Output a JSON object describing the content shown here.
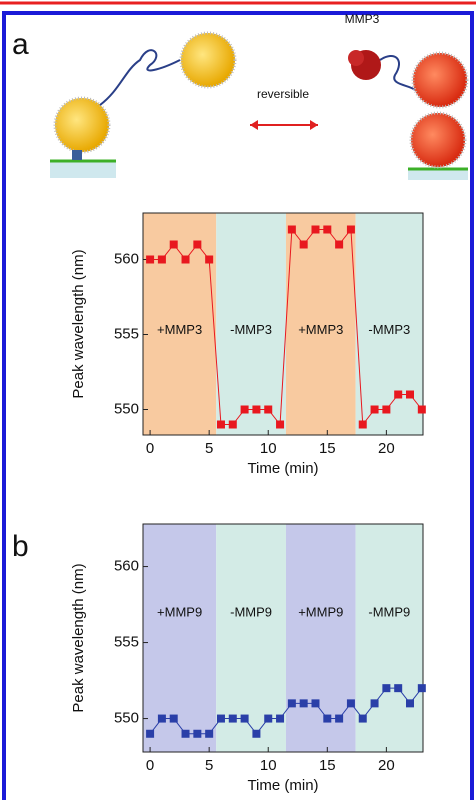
{
  "panel_labels": [
    "a",
    "b"
  ],
  "schematic": {
    "labels": [
      "MMP3",
      "reversible"
    ]
  },
  "chart_data": [
    {
      "type": "line",
      "xlabel": "Time (min)",
      "ylabel": "Peak wavelength (nm)",
      "xlim": [
        -0.6,
        23.1
      ],
      "ylim": [
        548.3,
        563.1
      ],
      "xticks": [
        0,
        5,
        10,
        15,
        20
      ],
      "yticks": [
        550,
        555,
        560
      ],
      "regions": [
        {
          "start": -0.6,
          "end": 5.6,
          "label": "+MMP3",
          "color": "#f8caa0"
        },
        {
          "start": 5.6,
          "end": 11.5,
          "label": "-MMP3",
          "color": "#d3ebe6"
        },
        {
          "start": 11.5,
          "end": 17.4,
          "label": "+MMP3",
          "color": "#f8caa0"
        },
        {
          "start": 17.4,
          "end": 23.1,
          "label": "-MMP3",
          "color": "#d3ebe6"
        }
      ],
      "x": [
        0,
        1,
        2,
        3,
        4,
        5,
        6,
        7,
        8,
        9,
        10,
        11,
        12,
        13,
        14,
        15,
        16,
        17,
        18,
        19,
        20,
        21,
        22,
        23
      ],
      "series": [
        {
          "color": "#e8181f",
          "values": [
            560,
            560,
            561,
            560,
            561,
            560,
            549,
            549,
            550,
            550,
            550,
            549,
            562,
            561,
            562,
            562,
            561,
            562,
            549,
            550,
            550,
            551,
            551,
            550
          ]
        }
      ]
    },
    {
      "type": "line",
      "xlabel": "Time (min)",
      "ylabel": "Peak wavelength (nm)",
      "xlim": [
        -0.6,
        23.1
      ],
      "ylim": [
        547.8,
        562.8
      ],
      "xticks": [
        0,
        5,
        10,
        15,
        20
      ],
      "yticks": [
        550,
        555,
        560
      ],
      "regions": [
        {
          "start": -0.6,
          "end": 5.6,
          "label": "+MMP9",
          "color": "#c5c8ea"
        },
        {
          "start": 5.6,
          "end": 11.5,
          "label": "-MMP9",
          "color": "#d3ebe6"
        },
        {
          "start": 11.5,
          "end": 17.4,
          "label": "+MMP9",
          "color": "#c5c8ea"
        },
        {
          "start": 17.4,
          "end": 23.1,
          "label": "-MMP9",
          "color": "#d3ebe6"
        }
      ],
      "x": [
        0,
        1,
        2,
        3,
        4,
        5,
        6,
        7,
        8,
        9,
        10,
        11,
        12,
        13,
        14,
        15,
        16,
        17,
        18,
        19,
        20,
        21,
        22,
        23
      ],
      "series": [
        {
          "color": "#2a3fa8",
          "values": [
            549,
            550,
            550,
            549,
            549,
            549,
            550,
            550,
            550,
            549,
            550,
            550,
            551,
            551,
            551,
            550,
            550,
            551,
            550,
            551,
            552,
            552,
            551,
            552
          ]
        }
      ]
    }
  ]
}
